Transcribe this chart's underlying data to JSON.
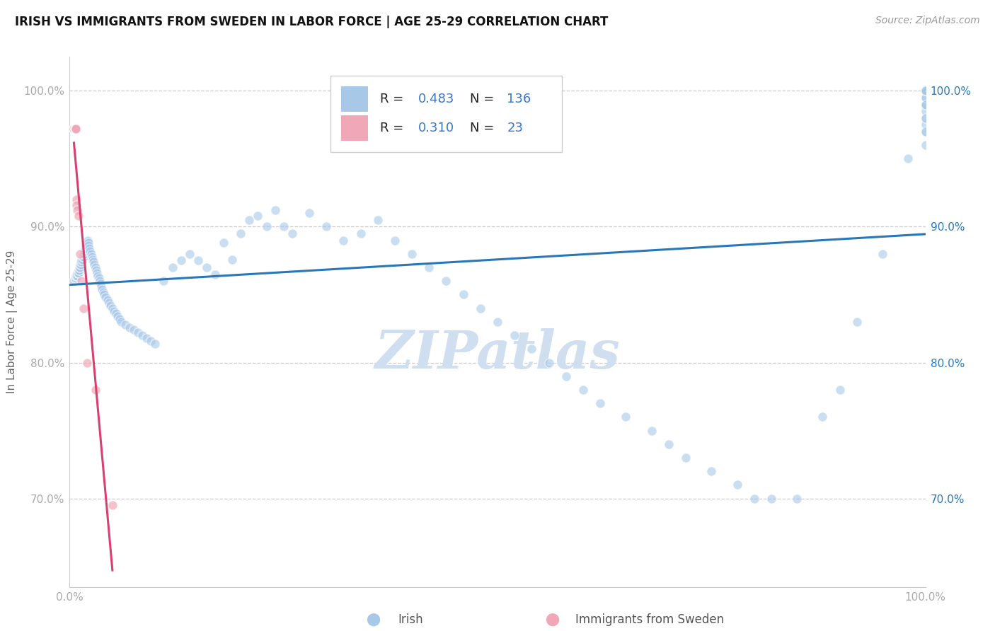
{
  "title": "IRISH VS IMMIGRANTS FROM SWEDEN IN LABOR FORCE | AGE 25-29 CORRELATION CHART",
  "source": "Source: ZipAtlas.com",
  "ylabel": "In Labor Force | Age 25-29",
  "legend_irish_R": "0.483",
  "legend_irish_N": "136",
  "legend_sweden_R": "0.310",
  "legend_sweden_N": "23",
  "blue_color": "#a8c8e8",
  "pink_color": "#f0a8b8",
  "blue_line_color": "#2878b8",
  "pink_line_color": "#d84070",
  "legend_R_color": "#3878c8",
  "watermark_color": "#d0dff0",
  "xlim": [
    0.0,
    1.0
  ],
  "ylim": [
    0.635,
    1.025
  ],
  "yticks": [
    0.7,
    0.8,
    0.9,
    1.0
  ],
  "ytick_labels_left": [
    "70.0%",
    "80.0%",
    "90.0%",
    "100.0%"
  ],
  "ytick_labels_right": [
    "70.0%",
    "80.0%",
    "90.0%",
    "100.0%"
  ],
  "xtick_labels": [
    "0.0%",
    "100.0%"
  ],
  "irish_x": [
    0.005,
    0.006,
    0.007,
    0.007,
    0.008,
    0.008,
    0.009,
    0.009,
    0.01,
    0.01,
    0.01,
    0.011,
    0.011,
    0.012,
    0.012,
    0.013,
    0.013,
    0.014,
    0.014,
    0.015,
    0.015,
    0.016,
    0.016,
    0.017,
    0.017,
    0.018,
    0.018,
    0.019,
    0.019,
    0.02,
    0.02,
    0.021,
    0.021,
    0.022,
    0.022,
    0.023,
    0.024,
    0.025,
    0.026,
    0.027,
    0.028,
    0.029,
    0.03,
    0.031,
    0.032,
    0.033,
    0.034,
    0.035,
    0.036,
    0.037,
    0.038,
    0.039,
    0.04,
    0.042,
    0.044,
    0.046,
    0.048,
    0.05,
    0.052,
    0.054,
    0.056,
    0.058,
    0.06,
    0.065,
    0.07,
    0.075,
    0.08,
    0.085,
    0.09,
    0.095,
    0.1,
    0.11,
    0.12,
    0.13,
    0.14,
    0.15,
    0.16,
    0.17,
    0.18,
    0.19,
    0.2,
    0.21,
    0.22,
    0.23,
    0.24,
    0.25,
    0.26,
    0.28,
    0.3,
    0.32,
    0.34,
    0.36,
    0.38,
    0.4,
    0.42,
    0.44,
    0.46,
    0.48,
    0.5,
    0.52,
    0.54,
    0.56,
    0.58,
    0.6,
    0.62,
    0.65,
    0.68,
    0.7,
    0.72,
    0.75,
    0.78,
    0.8,
    0.82,
    0.85,
    0.88,
    0.9,
    0.92,
    0.95,
    0.98,
    1.0,
    1.0,
    1.0,
    1.0,
    1.0,
    1.0,
    1.0,
    1.0,
    1.0,
    1.0,
    1.0,
    1.0,
    1.0,
    1.0,
    1.0,
    1.0,
    1.0
  ],
  "irish_y": [
    0.86,
    0.862,
    0.862,
    0.864,
    0.864,
    0.864,
    0.864,
    0.866,
    0.866,
    0.866,
    0.868,
    0.868,
    0.87,
    0.87,
    0.872,
    0.872,
    0.874,
    0.874,
    0.876,
    0.876,
    0.878,
    0.878,
    0.88,
    0.88,
    0.882,
    0.882,
    0.884,
    0.884,
    0.886,
    0.886,
    0.888,
    0.888,
    0.89,
    0.888,
    0.886,
    0.884,
    0.882,
    0.88,
    0.878,
    0.876,
    0.874,
    0.872,
    0.87,
    0.868,
    0.866,
    0.864,
    0.862,
    0.86,
    0.858,
    0.856,
    0.854,
    0.852,
    0.85,
    0.848,
    0.846,
    0.844,
    0.842,
    0.84,
    0.838,
    0.836,
    0.834,
    0.832,
    0.83,
    0.828,
    0.826,
    0.824,
    0.822,
    0.82,
    0.818,
    0.816,
    0.814,
    0.86,
    0.87,
    0.875,
    0.88,
    0.875,
    0.87,
    0.865,
    0.888,
    0.876,
    0.895,
    0.905,
    0.908,
    0.9,
    0.912,
    0.9,
    0.895,
    0.91,
    0.9,
    0.89,
    0.895,
    0.905,
    0.89,
    0.88,
    0.87,
    0.86,
    0.85,
    0.84,
    0.83,
    0.82,
    0.81,
    0.8,
    0.79,
    0.78,
    0.77,
    0.76,
    0.75,
    0.74,
    0.73,
    0.72,
    0.71,
    0.7,
    0.7,
    0.7,
    0.76,
    0.78,
    0.83,
    0.88,
    0.95,
    0.97,
    0.975,
    0.98,
    0.985,
    0.99,
    0.99,
    0.995,
    0.995,
    1.0,
    1.0,
    1.0,
    1.0,
    1.0,
    0.99,
    0.98,
    0.97,
    0.96
  ],
  "sweden_x": [
    0.005,
    0.005,
    0.005,
    0.005,
    0.005,
    0.006,
    0.006,
    0.006,
    0.006,
    0.007,
    0.007,
    0.007,
    0.007,
    0.008,
    0.008,
    0.009,
    0.01,
    0.012,
    0.014,
    0.016,
    0.02,
    0.03,
    0.05
  ],
  "sweden_y": [
    0.972,
    0.972,
    0.972,
    0.972,
    0.972,
    0.972,
    0.972,
    0.972,
    0.972,
    0.972,
    0.972,
    0.972,
    0.972,
    0.92,
    0.916,
    0.912,
    0.908,
    0.88,
    0.86,
    0.84,
    0.8,
    0.78,
    0.695
  ]
}
